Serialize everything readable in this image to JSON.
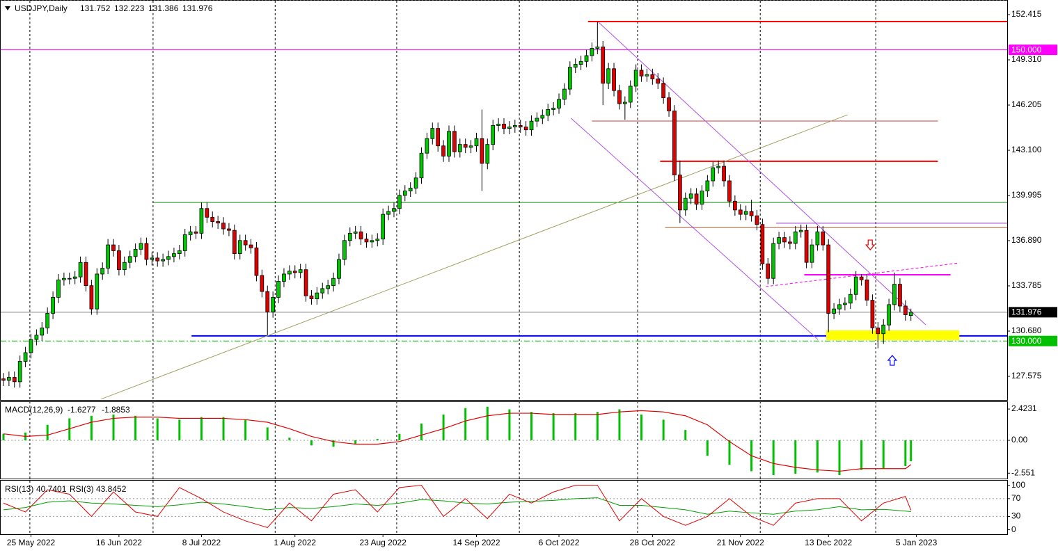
{
  "chart_data": [
    {
      "type": "candlestick",
      "title": "USDJPY,Daily",
      "open": [
        127.4,
        127.3,
        127.5,
        127.2,
        128.6,
        129.2,
        130.1,
        130.4,
        130.9,
        131.9,
        133.0,
        134.2,
        134.3,
        134.3,
        134.4,
        135.4,
        133.8,
        132.2,
        134.6,
        135.0,
        136.6,
        136.2,
        134.9,
        135.4,
        135.8,
        136.3,
        136.7,
        135.6,
        135.7,
        135.5,
        135.6,
        135.8,
        136.0,
        136.2,
        137.3,
        137.5,
        137.4,
        139.1,
        138.5,
        138.2,
        138.1,
        137.7,
        137.6,
        136.0,
        136.9,
        136.6,
        136.4,
        134.5,
        133.4,
        132.0,
        133.0,
        134.1,
        134.6,
        134.8,
        134.7,
        134.9,
        133.1,
        132.9,
        133.3,
        133.6,
        133.8,
        134.3,
        135.6,
        136.9,
        137.4,
        137.5,
        137.0,
        136.8,
        136.9,
        137.0,
        138.7,
        138.9,
        139.1,
        140.0,
        140.3,
        140.5,
        141.2,
        142.9,
        143.9,
        144.6,
        143.4,
        142.7,
        144.4,
        143.0,
        143.5,
        143.3,
        143.4,
        143.9,
        142.2,
        143.5,
        144.8,
        144.9,
        144.6,
        144.7,
        144.8,
        144.7,
        144.5,
        145.1,
        145.3,
        145.5,
        145.9,
        146.0,
        146.6,
        147.3,
        148.8,
        149.0,
        149.2,
        149.6,
        150.1,
        150.2,
        147.7,
        148.7,
        147.2,
        146.3,
        146.4,
        147.5,
        148.6,
        148.2,
        148.3,
        148.0,
        147.7,
        146.7,
        145.8,
        141.4,
        139.0,
        139.8,
        140.1,
        139.4,
        140.3,
        141.0,
        141.9,
        142.0,
        141.0,
        139.6,
        139.0,
        138.7,
        138.9,
        138.6,
        138.0,
        135.3,
        134.3,
        136.7,
        137.1,
        136.8,
        136.7,
        137.5,
        137.6,
        135.4,
        136.6,
        137.5,
        136.6,
        131.9,
        132.2,
        132.5,
        132.6,
        133.2,
        134.4,
        134.2,
        132.8,
        130.9,
        130.5,
        131.1,
        132.5,
        133.9,
        132.4,
        131.752
      ],
      "high": [
        127.8,
        127.9,
        127.9,
        129.0,
        129.6,
        130.5,
        130.8,
        131.3,
        132.3,
        133.4,
        134.6,
        134.7,
        134.7,
        134.8,
        135.8,
        135.8,
        134.2,
        135.0,
        135.4,
        137.0,
        137.0,
        136.6,
        135.8,
        136.2,
        136.7,
        137.1,
        137.1,
        136.1,
        136.1,
        136.0,
        136.2,
        136.4,
        136.6,
        137.7,
        137.9,
        137.9,
        139.5,
        139.5,
        138.9,
        138.6,
        138.5,
        138.1,
        138.0,
        137.3,
        137.3,
        137.0,
        136.8,
        134.9,
        133.8,
        133.4,
        134.5,
        135.0,
        135.2,
        135.2,
        135.3,
        135.3,
        133.5,
        133.7,
        134.0,
        134.2,
        134.7,
        136.0,
        137.3,
        137.8,
        137.9,
        137.9,
        137.4,
        137.3,
        137.4,
        139.1,
        139.3,
        139.5,
        140.4,
        140.7,
        140.9,
        141.6,
        143.3,
        144.3,
        145.0,
        145.0,
        143.8,
        144.8,
        144.8,
        143.9,
        143.9,
        143.8,
        144.3,
        145.9,
        143.9,
        145.2,
        145.3,
        145.3,
        145.1,
        145.2,
        145.2,
        145.1,
        145.5,
        145.7,
        145.9,
        146.3,
        146.4,
        147.0,
        147.7,
        149.2,
        149.4,
        149.6,
        150.0,
        150.5,
        151.9,
        150.6,
        149.1,
        149.1,
        147.6,
        146.8,
        147.9,
        149.0,
        149.0,
        148.7,
        148.7,
        148.4,
        148.1,
        147.1,
        146.2,
        142.4,
        140.2,
        140.5,
        140.5,
        140.7,
        141.4,
        142.3,
        142.4,
        142.4,
        141.4,
        140.0,
        139.4,
        139.3,
        139.7,
        139.0,
        138.4,
        135.7,
        137.1,
        137.5,
        137.5,
        137.2,
        137.9,
        138.0,
        138.0,
        137.0,
        137.9,
        137.9,
        137.0,
        132.6,
        132.9,
        133.0,
        133.6,
        134.8,
        134.6,
        134.6,
        133.2,
        131.3,
        131.5,
        132.9,
        134.7,
        134.3,
        132.8,
        132.223
      ],
      "low": [
        126.9,
        126.9,
        126.8,
        126.8,
        128.2,
        128.8,
        129.7,
        130.0,
        130.5,
        131.5,
        132.6,
        133.8,
        133.9,
        133.9,
        134.0,
        133.4,
        131.8,
        131.8,
        134.2,
        134.6,
        135.8,
        134.5,
        134.5,
        135.0,
        135.4,
        135.9,
        135.2,
        135.2,
        135.1,
        135.1,
        135.2,
        135.4,
        135.6,
        135.8,
        136.9,
        137.0,
        137.0,
        138.1,
        137.8,
        137.7,
        137.3,
        137.2,
        135.6,
        135.6,
        136.2,
        136.0,
        134.1,
        133.0,
        130.4,
        131.6,
        132.6,
        133.7,
        134.2,
        134.3,
        134.3,
        132.7,
        132.5,
        132.5,
        132.9,
        133.2,
        133.4,
        133.9,
        135.2,
        136.5,
        137.0,
        136.6,
        136.4,
        136.4,
        136.5,
        136.6,
        138.3,
        138.5,
        138.7,
        139.6,
        139.9,
        140.1,
        140.8,
        142.5,
        143.5,
        143.0,
        142.3,
        142.3,
        142.6,
        142.6,
        142.9,
        142.9,
        143.0,
        140.3,
        141.8,
        143.1,
        144.4,
        144.2,
        144.2,
        144.3,
        144.3,
        144.1,
        144.1,
        144.7,
        144.9,
        145.1,
        145.5,
        145.6,
        146.2,
        146.9,
        148.4,
        148.6,
        148.8,
        149.2,
        149.7,
        146.2,
        147.3,
        146.8,
        145.9,
        145.2,
        146.0,
        147.1,
        147.8,
        147.8,
        147.6,
        147.3,
        146.3,
        145.4,
        141.0,
        138.1,
        138.6,
        139.4,
        139.0,
        139.0,
        139.9,
        140.6,
        141.5,
        140.6,
        139.2,
        138.6,
        138.3,
        138.3,
        138.2,
        137.6,
        134.9,
        133.9,
        133.9,
        136.3,
        136.4,
        136.3,
        136.3,
        137.1,
        135.0,
        135.0,
        136.2,
        136.2,
        130.6,
        131.5,
        131.8,
        132.1,
        132.2,
        132.8,
        133.8,
        132.4,
        130.5,
        129.5,
        129.8,
        130.7,
        132.1,
        132.0,
        131.4,
        131.386
      ],
      "close": [
        127.3,
        127.5,
        127.2,
        128.6,
        129.2,
        130.1,
        130.4,
        130.9,
        131.9,
        133.0,
        134.2,
        134.3,
        134.3,
        134.4,
        135.4,
        133.8,
        132.2,
        134.6,
        135.0,
        136.6,
        136.2,
        134.9,
        135.4,
        135.8,
        136.3,
        136.7,
        135.6,
        135.7,
        135.5,
        135.6,
        135.8,
        136.0,
        136.2,
        137.3,
        137.5,
        137.4,
        139.1,
        138.5,
        138.2,
        138.1,
        137.7,
        137.6,
        136.0,
        136.9,
        136.6,
        136.4,
        134.5,
        133.4,
        132.0,
        133.0,
        134.1,
        134.6,
        134.8,
        134.7,
        134.9,
        133.1,
        132.9,
        133.3,
        133.6,
        133.8,
        134.3,
        135.6,
        136.9,
        137.4,
        137.5,
        137.0,
        136.8,
        136.9,
        137.0,
        138.7,
        138.9,
        139.1,
        140.0,
        140.3,
        140.5,
        141.2,
        142.9,
        143.9,
        144.6,
        143.4,
        142.7,
        144.4,
        143.0,
        143.5,
        143.3,
        143.4,
        143.9,
        142.2,
        143.5,
        144.8,
        144.9,
        144.6,
        144.7,
        144.8,
        144.7,
        144.5,
        145.1,
        145.3,
        145.5,
        145.9,
        146.0,
        146.6,
        147.3,
        148.8,
        149.0,
        149.2,
        149.6,
        150.1,
        150.2,
        147.7,
        148.7,
        147.2,
        146.3,
        146.4,
        147.5,
        148.6,
        148.2,
        148.3,
        148.0,
        147.7,
        146.7,
        145.8,
        141.4,
        139.0,
        139.8,
        140.1,
        139.4,
        140.3,
        141.0,
        141.9,
        142.0,
        141.0,
        139.6,
        139.0,
        138.7,
        138.9,
        138.6,
        138.0,
        135.3,
        134.3,
        136.7,
        137.1,
        136.8,
        136.7,
        137.5,
        137.6,
        135.4,
        136.6,
        137.5,
        136.6,
        131.9,
        132.2,
        132.5,
        132.6,
        133.2,
        134.4,
        134.2,
        132.8,
        130.9,
        130.5,
        131.1,
        132.5,
        133.9,
        132.4,
        131.8,
        131.976
      ],
      "up_color": "#00c800",
      "down_color": "#e00000",
      "price_line_color": "#808080",
      "xlim": [
        -0.63,
        182.5
      ],
      "ylim": [
        125.95,
        153.42
      ],
      "yticks": [
        127.575,
        {
          "value": 130.68,
          "label": "130.680"
        },
        133.785,
        {
          "value": 136.89,
          "label": "136.890"
        },
        139.995,
        {
          "value": 143.1,
          "label": "143.100"
        },
        146.205,
        {
          "value": 149.31,
          "label": "149.310"
        },
        152.415
      ],
      "xticks": [
        {
          "value": 5,
          "label": "25 May 2022"
        },
        {
          "value": 21,
          "label": "16 Jun 2022"
        },
        {
          "value": 36,
          "label": "8 Jul 2022"
        },
        {
          "value": 53,
          "label": "1 Aug 2022"
        },
        {
          "value": 69,
          "label": "23 Aug 2022"
        },
        {
          "value": 86,
          "label": "14 Sep 2022"
        },
        {
          "value": 101,
          "label": "6 Oct 2022"
        },
        {
          "value": 118,
          "label": "28 Oct 2022"
        },
        {
          "value": 134,
          "label": "21 Nov 2022"
        },
        {
          "value": 150,
          "label": "13 Dec 2022"
        },
        {
          "value": 166,
          "label": "5 Jan 2023"
        }
      ],
      "separators": [
        4.8,
        27.2,
        49.4,
        71.5,
        93.8,
        115.3,
        137.6,
        158.6
      ],
      "levels": [
        {
          "value": 150,
          "label": "150.000",
          "color": "#ff00ff",
          "dash": false
        },
        {
          "value": 130,
          "label": "130.000",
          "color": "#00c000",
          "dash": true
        }
      ],
      "hlines": [
        {
          "value": 151.94,
          "from": 106.3,
          "to": 182.5,
          "color": "#ff0000",
          "width": 2
        },
        {
          "value": 145.11,
          "from": 107.0,
          "to": 169.9,
          "color": "#c83c3c",
          "width": 1
        },
        {
          "value": 142.34,
          "from": 119.4,
          "to": 169.9,
          "color": "#ff0000",
          "width": 2
        },
        {
          "value": 139.52,
          "from": 27.2,
          "to": 182.5,
          "color": "#008000",
          "width": 1
        },
        {
          "value": 138.09,
          "from": 140.5,
          "to": 182.5,
          "color": "#9932cc",
          "width": 1
        },
        {
          "value": 137.8,
          "from": 120.3,
          "to": 182.5,
          "color": "#a0522d",
          "width": 1
        },
        {
          "value": 134.55,
          "from": 145.6,
          "to": 172.2,
          "color": "#ff00ff",
          "width": 2
        },
        {
          "value": 130.35,
          "from": 34.2,
          "to": 182.5,
          "color": "#0000ff",
          "width": 2
        }
      ],
      "trendlines": [
        {
          "from": [
            17.7,
            126.0
          ],
          "to": [
            153.5,
            145.54
          ],
          "color": "#a0a060",
          "dash": false
        },
        {
          "from": [
            108.2,
            151.89
          ],
          "to": [
            167.7,
            131.11
          ],
          "color": "#b050e0",
          "dash": false
        },
        {
          "from": [
            103.2,
            145.3
          ],
          "to": [
            148.1,
            130.1
          ],
          "color": "#b050e0",
          "dash": false
        },
        {
          "from": [
            138.6,
            133.74
          ],
          "to": [
            173.8,
            135.36
          ],
          "color": "#ff00ff",
          "dash": true
        }
      ],
      "rectangles": [
        {
          "from": [
            149.6,
            130.73
          ],
          "to": [
            173.8,
            130.06
          ],
          "color": "#ffff00"
        }
      ],
      "arrows": [
        {
          "at": [
            157.6,
            136.6
          ],
          "direction": "down",
          "color": "#e00000"
        },
        {
          "at": [
            161.6,
            128.67
          ],
          "direction": "up",
          "color": "#0000ff"
        }
      ]
    },
    {
      "type": "macd",
      "name": "MACD(12,26,9)",
      "x": [
        0,
        4,
        8,
        12,
        16,
        20,
        24,
        28,
        32,
        36,
        40,
        44,
        48,
        52,
        56,
        60,
        64,
        68,
        72,
        76,
        80,
        84,
        88,
        92,
        96,
        100,
        104,
        108,
        112,
        116,
        120,
        124,
        128,
        132,
        136,
        140,
        144,
        148,
        152,
        156,
        160,
        164,
        165
      ],
      "histogram": {
        "color": "#00c000",
        "values": [
          0.5,
          0.6,
          1.2,
          1.7,
          1.9,
          2.0,
          1.9,
          1.7,
          1.6,
          1.8,
          1.8,
          1.6,
          1.0,
          0.2,
          -0.4,
          -0.5,
          -0.3,
          0.1,
          0.5,
          1.3,
          2.0,
          2.5,
          2.6,
          2.4,
          2.2,
          2.1,
          2.1,
          2.2,
          2.4,
          2.0,
          1.6,
          0.8,
          -1.2,
          -1.9,
          -2.4,
          -2.7,
          -2.6,
          -2.5,
          -2.7,
          -2.3,
          -2.2,
          -2.0,
          -1.6277
        ]
      },
      "signal": {
        "color": "#e00000",
        "values": [
          0.5,
          0.3,
          0.4,
          0.9,
          1.4,
          1.7,
          1.8,
          1.8,
          1.7,
          1.7,
          1.7,
          1.6,
          1.4,
          0.9,
          0.3,
          -0.1,
          -0.3,
          -0.3,
          -0.1,
          0.4,
          0.9,
          1.5,
          1.9,
          2.1,
          2.1,
          2.0,
          2.0,
          2.0,
          2.2,
          2.3,
          2.2,
          1.9,
          1.2,
          -0.1,
          -1.2,
          -1.8,
          -2.1,
          -2.3,
          -2.4,
          -2.2,
          -2.2,
          -2.2,
          -1.8853
        ]
      },
      "ylim": [
        -2.97,
        3.02
      ],
      "yticks": [
        2.4231,
        {
          "value": 0,
          "label": "0.00"
        },
        -2.551
      ],
      "levels": [
        0
      ]
    },
    {
      "type": "rsi",
      "x": [
        0,
        4,
        8,
        12,
        16,
        20,
        24,
        28,
        32,
        36,
        40,
        44,
        48,
        52,
        56,
        60,
        64,
        68,
        72,
        76,
        80,
        84,
        88,
        92,
        96,
        100,
        104,
        108,
        112,
        116,
        120,
        124,
        128,
        132,
        136,
        140,
        144,
        148,
        152,
        156,
        160,
        164,
        165
      ],
      "series": [
        {
          "name": "RSI(13)",
          "color": "#00a000",
          "values": [
            45,
            50,
            62,
            65,
            60,
            58,
            55,
            52,
            56,
            62,
            58,
            52,
            45,
            50,
            48,
            52,
            58,
            55,
            60,
            68,
            65,
            60,
            58,
            62,
            64,
            66,
            70,
            72,
            55,
            55,
            50,
            45,
            35,
            42,
            38,
            35,
            42,
            45,
            52,
            45,
            46,
            42,
            40.7401
          ]
        },
        {
          "name": "RSI(3)",
          "color": "#e00000",
          "values": [
            60,
            40,
            90,
            80,
            30,
            85,
            40,
            30,
            95,
            70,
            40,
            20,
            5,
            60,
            20,
            80,
            90,
            40,
            95,
            100,
            30,
            70,
            25,
            80,
            60,
            85,
            100,
            100,
            20,
            70,
            30,
            10,
            30,
            70,
            30,
            10,
            60,
            70,
            70,
            20,
            60,
            75,
            43.8452
          ]
        }
      ],
      "ylim": [
        -10,
        112
      ],
      "yticks": [
        100,
        70,
        30,
        0
      ],
      "levels": [
        70,
        30
      ]
    }
  ]
}
